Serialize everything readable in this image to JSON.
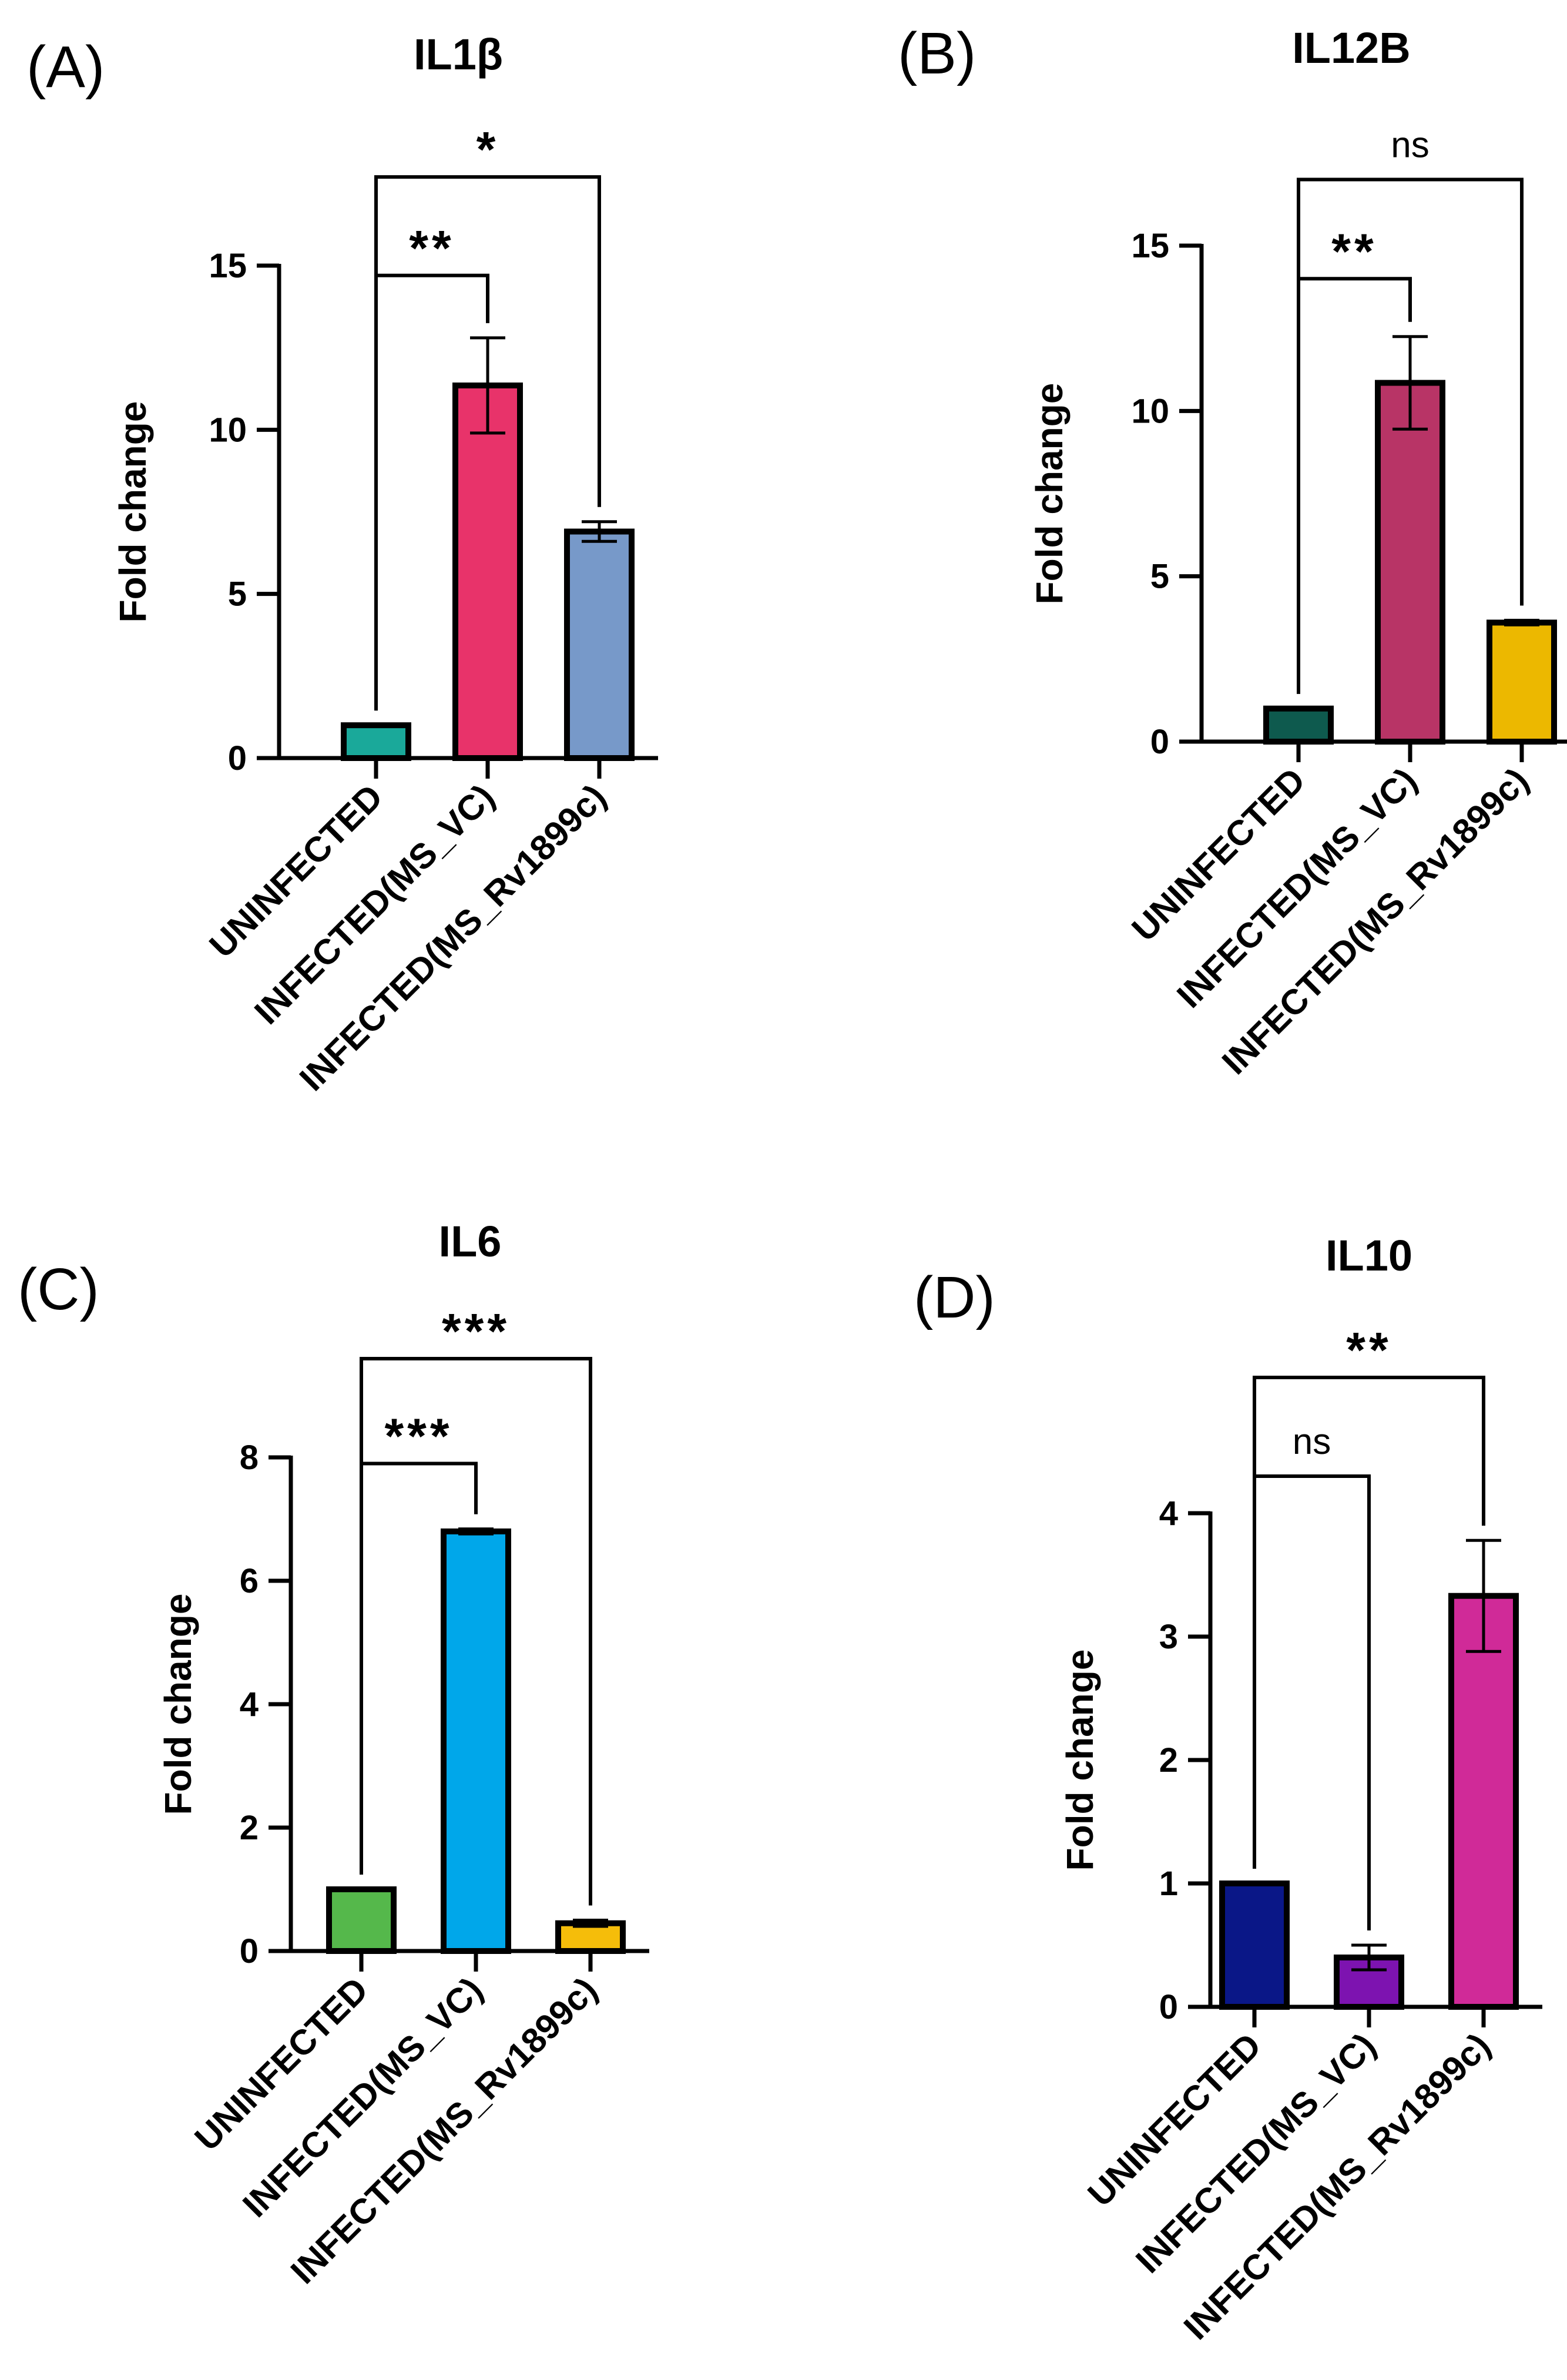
{
  "chart_data": [
    {
      "panel": "(A)",
      "type": "bar",
      "title": "IL1β",
      "ylabel": "Fold change",
      "xlabel": "",
      "ylim": [
        0,
        15
      ],
      "yticks": [
        0,
        5,
        10,
        15
      ],
      "categories": [
        "UNINFECTED",
        "INFECTED(MS_VC)",
        "INFECTED(MS_Rv1899c)"
      ],
      "values": [
        1.0,
        11.35,
        6.9
      ],
      "errors": [
        0.0,
        1.45,
        0.3
      ],
      "colors": [
        "#1aa99a",
        "#e8336a",
        "#7799c9"
      ],
      "significance": [
        {
          "from": 0,
          "to": 1,
          "label": "**",
          "y": 14.7
        },
        {
          "from": 0,
          "to": 2,
          "label": "*",
          "y": 17.7
        }
      ]
    },
    {
      "panel": "(B)",
      "type": "bar",
      "title": "IL12B",
      "ylabel": "Fold change",
      "xlabel": "",
      "ylim": [
        0,
        15
      ],
      "yticks": [
        0,
        5,
        10,
        15
      ],
      "categories": [
        "UNINFECTED",
        "INFECTED(MS_VC)",
        "INFECTED(MS_Rv1899c)"
      ],
      "values": [
        1.0,
        10.85,
        3.6
      ],
      "errors": [
        0.0,
        1.4,
        0.07
      ],
      "colors": [
        "#0e5a4e",
        "#b83466",
        "#ecb800"
      ],
      "significance": [
        {
          "from": 0,
          "to": 1,
          "label": "**",
          "y": 14.0
        },
        {
          "from": 0,
          "to": 2,
          "label": "ns",
          "y": 17.0
        }
      ]
    },
    {
      "panel": "(C)",
      "type": "bar",
      "title": "IL6",
      "ylabel": "Fold change",
      "xlabel": "",
      "ylim": [
        0,
        8
      ],
      "yticks": [
        0,
        2,
        4,
        6,
        8
      ],
      "categories": [
        "UNINFECTED",
        "INFECTED(MS_VC)",
        "INFECTED(MS_Rv1899c)"
      ],
      "values": [
        1.0,
        6.8,
        0.45
      ],
      "errors": [
        0.0,
        0.04,
        0.05
      ],
      "colors": [
        "#55b84b",
        "#00a7ea",
        "#f5bd0a"
      ],
      "significance": [
        {
          "from": 0,
          "to": 1,
          "label": "***",
          "y": 7.9
        },
        {
          "from": 0,
          "to": 2,
          "label": "***",
          "y": 9.6
        }
      ]
    },
    {
      "panel": "(D)",
      "type": "bar",
      "title": "IL10",
      "ylabel": "Fold change",
      "xlabel": "",
      "ylim": [
        0,
        4
      ],
      "yticks": [
        0,
        1,
        2,
        3,
        4
      ],
      "categories": [
        "UNINFECTED",
        "INFECTED(MS_VC)",
        "INFECTED(MS_Rv1899c)"
      ],
      "values": [
        1.0,
        0.4,
        3.33
      ],
      "errors": [
        0.0,
        0.1,
        0.45
      ],
      "colors": [
        "#0a1787",
        "#7d13b0",
        "#d02a98"
      ],
      "significance": [
        {
          "from": 0,
          "to": 1,
          "label": "ns",
          "y": 4.3
        },
        {
          "from": 0,
          "to": 2,
          "label": "**",
          "y": 5.1
        }
      ]
    }
  ]
}
